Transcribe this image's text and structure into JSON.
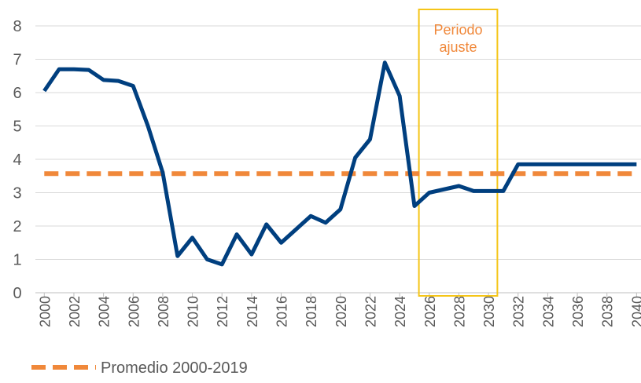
{
  "chart_data": {
    "type": "line",
    "x": [
      2000,
      2001,
      2002,
      2003,
      2004,
      2005,
      2006,
      2007,
      2008,
      2009,
      2010,
      2011,
      2012,
      2013,
      2014,
      2015,
      2016,
      2017,
      2018,
      2019,
      2020,
      2021,
      2022,
      2023,
      2024,
      2025,
      2026,
      2027,
      2028,
      2029,
      2030,
      2031,
      2032,
      2033,
      2034,
      2035,
      2036,
      2037,
      2038,
      2039,
      2040
    ],
    "series": [
      {
        "color": "#003f7f",
        "dashed": false,
        "values": [
          6.05,
          6.7,
          6.7,
          6.68,
          6.38,
          6.35,
          6.2,
          5.0,
          3.6,
          1.1,
          1.65,
          1.0,
          0.85,
          1.75,
          1.15,
          2.05,
          1.5,
          1.9,
          2.3,
          2.1,
          2.5,
          4.05,
          4.6,
          6.9,
          5.9,
          2.6,
          3.0,
          3.1,
          3.2,
          3.05,
          3.05,
          3.05,
          3.85,
          3.85,
          3.85,
          3.85,
          3.85,
          3.85,
          3.85,
          3.85,
          3.85
        ]
      },
      {
        "name": "Promedio 2000-2019",
        "color": "#f0883a",
        "dashed": true,
        "values": [
          3.57,
          3.57,
          3.57,
          3.57,
          3.57,
          3.57,
          3.57,
          3.57,
          3.57,
          3.57,
          3.57,
          3.57,
          3.57,
          3.57,
          3.57,
          3.57,
          3.57,
          3.57,
          3.57,
          3.57,
          3.57,
          3.57,
          3.57,
          3.57,
          3.57,
          3.57,
          3.57,
          3.57,
          3.57,
          3.57,
          3.57,
          3.57,
          3.57,
          3.57,
          3.57,
          3.57,
          3.57,
          3.57,
          3.57,
          3.57,
          3.57
        ]
      }
    ],
    "xlim": [
      1999.4,
      2040.3
    ],
    "xticks": [
      2000,
      2002,
      2004,
      2006,
      2008,
      2010,
      2012,
      2014,
      2016,
      2018,
      2020,
      2022,
      2024,
      2026,
      2028,
      2030,
      2032,
      2034,
      2036,
      2038,
      2040
    ],
    "ylim": [
      0,
      8
    ],
    "yticks": [
      0,
      1,
      2,
      3,
      4,
      5,
      6,
      7,
      8
    ],
    "grid": true,
    "legend": "bottom-left",
    "annotation": {
      "text": "Periodo ajuste",
      "x": [
        2025.3,
        2030.6
      ],
      "color": "#f5c518",
      "text_color": "#f0883a"
    }
  }
}
